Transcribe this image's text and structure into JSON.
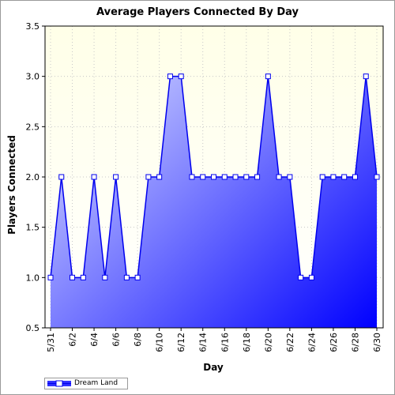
{
  "chart_data": {
    "type": "area",
    "title": "Average Players Connected By Day",
    "xlabel": "Day",
    "ylabel": "Players Connected",
    "ylim": [
      0.5,
      3.5
    ],
    "yticks": [
      "0.5",
      "1.0",
      "1.5",
      "2.0",
      "2.5",
      "3.0",
      "3.5"
    ],
    "grid": true,
    "legend": "bottom-left",
    "x": [
      "5/31",
      "6/1",
      "6/2",
      "6/3",
      "6/4",
      "6/5",
      "6/6",
      "6/7",
      "6/8",
      "6/9",
      "6/10",
      "6/11",
      "6/12",
      "6/13",
      "6/14",
      "6/15",
      "6/16",
      "6/17",
      "6/18",
      "6/19",
      "6/20",
      "6/21",
      "6/22",
      "6/23",
      "6/24",
      "6/25",
      "6/26",
      "6/27",
      "6/28",
      "6/29",
      "6/30"
    ],
    "xtick_labels": [
      "5/31",
      "6/2",
      "6/4",
      "6/6",
      "6/8",
      "6/10",
      "6/12",
      "6/14",
      "6/16",
      "6/18",
      "6/20",
      "6/22",
      "6/24",
      "6/26",
      "6/28",
      "6/30"
    ],
    "series": [
      {
        "name": "Dream Land",
        "values": [
          1,
          2,
          1,
          1,
          2,
          1,
          2,
          1,
          1,
          2,
          2,
          3,
          3,
          2,
          2,
          2,
          2,
          2,
          2,
          2,
          3,
          2,
          2,
          1,
          1,
          2,
          2,
          2,
          2,
          3,
          2
        ]
      }
    ],
    "colors": {
      "line": "#0000ee",
      "fill_light": "#c8ccff",
      "fill_dark": "#0000ff",
      "background_top": "#ffffe8",
      "background_bottom": "#ffffff",
      "grid": "#c8c8c8"
    }
  }
}
